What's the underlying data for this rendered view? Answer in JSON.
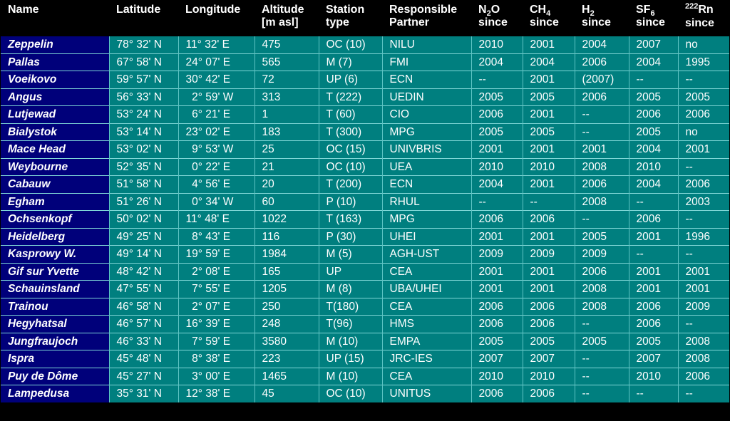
{
  "colors": {
    "header_bg": "#000000",
    "name_col_bg": "#00007a",
    "body_bg": "#007f7f",
    "grid_lines": "#7fd6d6",
    "text": "#ffffff"
  },
  "header": {
    "name": "Name",
    "latitude": "Latitude",
    "longitude": "Longitude",
    "altitude_1": "Altitude",
    "altitude_2": "[m asl]",
    "station_1": "Station",
    "station_2": "type",
    "partner_1": "Responsible",
    "partner_2": "Partner",
    "n2o_pre": "N",
    "n2o_sub": "2",
    "n2o_post": "O",
    "ch4_pre": "CH",
    "ch4_sub": "4",
    "h2_pre": "H",
    "h2_sub": "2",
    "sf6_pre": "SF",
    "sf6_sub": "6",
    "rn_sup": "222",
    "rn_post": "Rn",
    "since": "since"
  },
  "rows": [
    {
      "name": "Zeppelin",
      "lat": "78° 32' N",
      "lon": "11° 32' E",
      "alt": "475",
      "type": "OC (10)",
      "partner": "NILU",
      "n2o": "2010",
      "ch4": "2001",
      "h2": "2004",
      "sf6": "2007",
      "rn": "no"
    },
    {
      "name": "Pallas",
      "lat": "67° 58' N",
      "lon": "24° 07' E",
      "alt": "565",
      "type": "M (7)",
      "partner": "FMI",
      "n2o": "2004",
      "ch4": "2004",
      "h2": "2006",
      "sf6": "2004",
      "rn": "1995"
    },
    {
      "name": "Voeikovo",
      "lat": "59° 57' N",
      "lon": "30° 42' E",
      "alt": "72",
      "type": "UP (6)",
      "partner": "ECN",
      "n2o": "--",
      "ch4": "2001",
      "h2": "(2007)",
      "sf6": "--",
      "rn": "--"
    },
    {
      "name": "Angus",
      "lat": "56° 33' N",
      "lon": "  2° 59' W",
      "alt": "313",
      "type": "T (222)",
      "partner": "UEDIN",
      "n2o": "2005",
      "ch4": "2005",
      "h2": "2006",
      "sf6": "2005",
      "rn": "2005"
    },
    {
      "name": "Lutjewad",
      "lat": "53° 24' N",
      "lon": "  6° 21' E",
      "alt": "1",
      "type": "T (60)",
      "partner": "CIO",
      "n2o": "2006",
      "ch4": "2001",
      "h2": "--",
      "sf6": "2006",
      "rn": "2006"
    },
    {
      "name": "Bialystok",
      "lat": "53° 14' N",
      "lon": "23° 02' E",
      "alt": "183",
      "type": "T (300)",
      "partner": "MPG",
      "n2o": "2005",
      "ch4": "2005",
      "h2": "--",
      "sf6": "2005",
      "rn": "no"
    },
    {
      "name": "Mace Head",
      "lat": "53° 02' N",
      "lon": "  9° 53' W",
      "alt": "25",
      "type": "OC (15)",
      "partner": "UNIVBRIS",
      "n2o": "2001",
      "ch4": "2001",
      "h2": "2001",
      "sf6": "2004",
      "rn": "2001"
    },
    {
      "name": "Weybourne",
      "lat": "52° 35' N",
      "lon": "  0° 22' E",
      "alt": "21",
      "type": "OC (10)",
      "partner": "UEA",
      "n2o": "2010",
      "ch4": "2010",
      "h2": "2008",
      "sf6": "2010",
      "rn": "--"
    },
    {
      "name": "Cabauw",
      "lat": "51° 58' N",
      "lon": "  4° 56' E",
      "alt": "20",
      "type": "T (200)",
      "partner": "ECN",
      "n2o": "2004",
      "ch4": "2001",
      "h2": "2006",
      "sf6": "2004",
      "rn": "2006"
    },
    {
      "name": "Egham",
      "lat": "51° 26' N",
      "lon": "  0° 34' W",
      "alt": "60",
      "type": "P (10)",
      "partner": "RHUL",
      "n2o": "--",
      "ch4": "--",
      "h2": "2008",
      "sf6": "--",
      "rn": "2003"
    },
    {
      "name": "Ochsenkopf",
      "lat": "50° 02' N",
      "lon": "11° 48' E",
      "alt": "1022",
      "type": "T (163)",
      "partner": "MPG",
      "n2o": "2006",
      "ch4": "2006",
      "h2": "--",
      "sf6": "2006",
      "rn": "--"
    },
    {
      "name": "Heidelberg",
      "lat": "49° 25' N",
      "lon": "  8° 43' E",
      "alt": "116",
      "type": "P (30)",
      "partner": "UHEI",
      "n2o": "2001",
      "ch4": "2001",
      "h2": "2005",
      "sf6": "2001",
      "rn": "1996"
    },
    {
      "name": "Kasprowy W.",
      "lat": "49° 14' N",
      "lon": "19° 59' E",
      "alt": "1984",
      "type": "M (5)",
      "partner": "AGH-UST",
      "n2o": "2009",
      "ch4": "2009",
      "h2": "2009",
      "sf6": "--",
      "rn": "--"
    },
    {
      "name": "Gif sur Yvette",
      "lat": "48° 42' N",
      "lon": "  2° 08' E",
      "alt": "165",
      "type": "UP",
      "partner": "CEA",
      "n2o": "2001",
      "ch4": "2001",
      "h2": "2006",
      "sf6": "2001",
      "rn": "2001"
    },
    {
      "name": "Schauinsland",
      "lat": "47° 55' N",
      "lon": "  7° 55' E",
      "alt": "1205",
      "type": "M (8)",
      "partner": "UBA/UHEI",
      "n2o": "2001",
      "ch4": "2001",
      "h2": "2008",
      "sf6": "2001",
      "rn": "2001"
    },
    {
      "name": "Trainou",
      "lat": "46° 58' N",
      "lon": "  2° 07' E",
      "alt": "250",
      "type": "T(180)",
      "partner": "CEA",
      "n2o": "2006",
      "ch4": "2006",
      "h2": "2008",
      "sf6": "2006",
      "rn": "2009"
    },
    {
      "name": "Hegyhatsal",
      "lat": "46° 57' N",
      "lon": "16° 39' E",
      "alt": "248",
      "type": "T(96)",
      "partner": "HMS",
      "n2o": "2006",
      "ch4": "2006",
      "h2": "--",
      "sf6": "2006",
      "rn": "--"
    },
    {
      "name": "Jungfraujoch",
      "lat": "46° 33' N",
      "lon": "  7° 59' E",
      "alt": "3580",
      "type": "M (10)",
      "partner": "EMPA",
      "n2o": "2005",
      "ch4": "2005",
      "h2": "2005",
      "sf6": "2005",
      "rn": "2008"
    },
    {
      "name": "Ispra",
      "lat": "45° 48' N",
      "lon": "  8° 38' E",
      "alt": "223",
      "type": "UP (15)",
      "partner": "JRC-IES",
      "n2o": "2007",
      "ch4": "2007",
      "h2": "--",
      "sf6": "2007",
      "rn": "2008"
    },
    {
      "name": "Puy de Dôme",
      "lat": "45° 27' N",
      "lon": "  3° 00' E",
      "alt": "1465",
      "type": "M (10)",
      "partner": "CEA",
      "n2o": "2010",
      "ch4": "2010",
      "h2": "--",
      "sf6": "2010",
      "rn": "2006"
    },
    {
      "name": "Lampedusa",
      "lat": "35° 31' N",
      "lon": "12° 38' E",
      "alt": "45",
      "type": "OC (10)",
      "partner": "UNITUS",
      "n2o": "2006",
      "ch4": "2006",
      "h2": "--",
      "sf6": "--",
      "rn": "--"
    }
  ]
}
